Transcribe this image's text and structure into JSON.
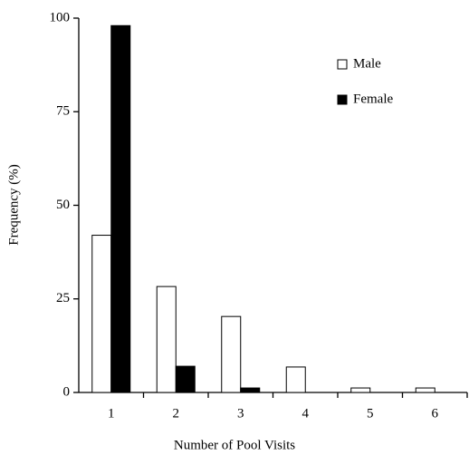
{
  "chart_data": {
    "type": "bar",
    "x_label": "Number of Pool Visits",
    "y_label": "Frequency (%)",
    "categories": [
      "1",
      "2",
      "3",
      "4",
      "5",
      "6"
    ],
    "series": [
      {
        "name": "Male",
        "color": "#ffffff",
        "values": [
          42,
          28.3,
          20.3,
          6.8,
          1.2,
          1.2
        ]
      },
      {
        "name": "Female",
        "color": "#000000",
        "values": [
          98,
          7,
          1.2,
          0,
          0,
          0
        ]
      }
    ],
    "ylim": [
      0,
      100
    ],
    "yticks": [
      0,
      25,
      50,
      75,
      100
    ],
    "legend": "upper right"
  }
}
